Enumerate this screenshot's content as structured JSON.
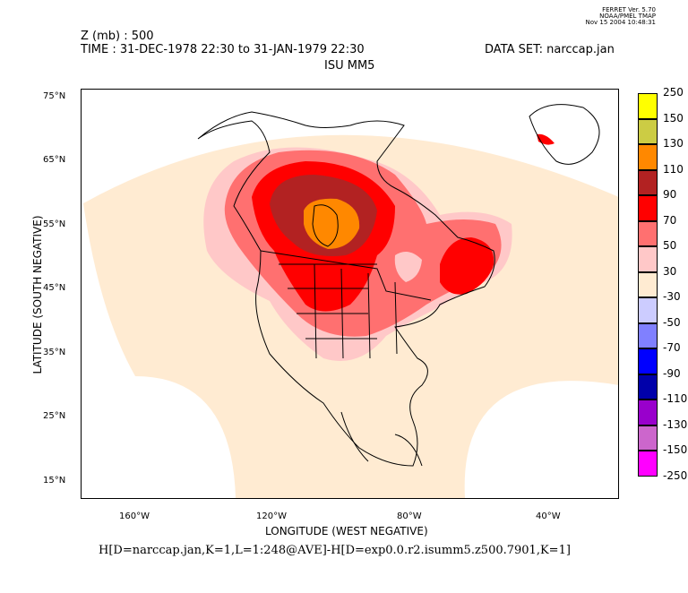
{
  "ferret_stamp": {
    "line1": "FERRET Ver. 5.70",
    "line2": "NOAA/PMEL TMAP",
    "line3": "Nov 15 2004 10:48:31"
  },
  "header": {
    "variable": "Z (mb) : 500",
    "time": "TIME : 31-DEC-1978 22:30 to 31-JAN-1979 22:30",
    "dataset": "DATA SET: narccap.jan",
    "model": "ISU MM5"
  },
  "axes": {
    "xlabel": "LONGITUDE (WEST NEGATIVE)",
    "ylabel": "LATITUDE (SOUTH NEGATIVE)",
    "xticks": [
      "160°W",
      "120°W",
      "80°W",
      "40°W"
    ],
    "yticks": [
      "75°N",
      "65°N",
      "55°N",
      "45°N",
      "35°N",
      "25°N",
      "15°N"
    ],
    "xlim": [
      -175,
      -10
    ],
    "ylim": [
      12.5,
      76.5
    ]
  },
  "command": "H[D=narccap.jan,K=1,L=1:248@AVE]-H[D=exp0.0.r2.isumm5.z500.7901,K=1]",
  "colorbar": {
    "levels": [
      {
        "label": "250",
        "color": "#ffff00"
      },
      {
        "label": "150",
        "color": "#cccc44"
      },
      {
        "label": "130",
        "color": "#ff8800"
      },
      {
        "label": "110",
        "color": "#b22222"
      },
      {
        "label": "90",
        "color": "#ff0000"
      },
      {
        "label": "70",
        "color": "#ff7070"
      },
      {
        "label": "50",
        "color": "#ffc8c8"
      },
      {
        "label": "30",
        "color": "#ffebd2"
      },
      {
        "label": "-30",
        "color": "#ccccff"
      },
      {
        "label": "-50",
        "color": "#8080ff"
      },
      {
        "label": "-70",
        "color": "#0000ff"
      },
      {
        "label": "-90",
        "color": "#0000aa"
      },
      {
        "label": "-110",
        "color": "#9900cc"
      },
      {
        "label": "-130",
        "color": "#cc66cc"
      },
      {
        "label": "-150",
        "color": "#ff00ff"
      },
      {
        "label": "-250",
        "color": ""
      }
    ]
  },
  "chart_data": {
    "type": "heatmap",
    "title": "Z (mb) : 500",
    "xlabel": "LONGITUDE (WEST NEGATIVE)",
    "ylabel": "LATITUDE (SOUTH NEGATIVE)",
    "xlim": [
      -175,
      -10
    ],
    "ylim": [
      12.5,
      76.5
    ],
    "contour_levels": [
      -250,
      -150,
      -130,
      -110,
      -90,
      -70,
      -50,
      -30,
      30,
      50,
      70,
      90,
      110,
      130,
      150,
      250
    ],
    "regions": [
      {
        "band": "30 to 50",
        "extent": "entire model domain (fan-shaped)"
      },
      {
        "band": "50 to 70",
        "center": [
          -100,
          52
        ],
        "note": "broad region over central North America"
      },
      {
        "band": "70 to 90",
        "center": [
          -104,
          52
        ]
      },
      {
        "band": "90 to 110",
        "center": [
          -104,
          55
        ]
      },
      {
        "band": "110 to 130",
        "center": [
          -103,
          56
        ]
      },
      {
        "band": "130 to 150",
        "center": [
          -102,
          55
        ]
      },
      {
        "band": "90 to 110",
        "center": [
          -68,
          48
        ],
        "note": "secondary maximum over Quebec/Maritimes"
      },
      {
        "band": "90 to 110",
        "center": [
          -40,
          71
        ],
        "note": "small patch over Greenland"
      }
    ]
  }
}
